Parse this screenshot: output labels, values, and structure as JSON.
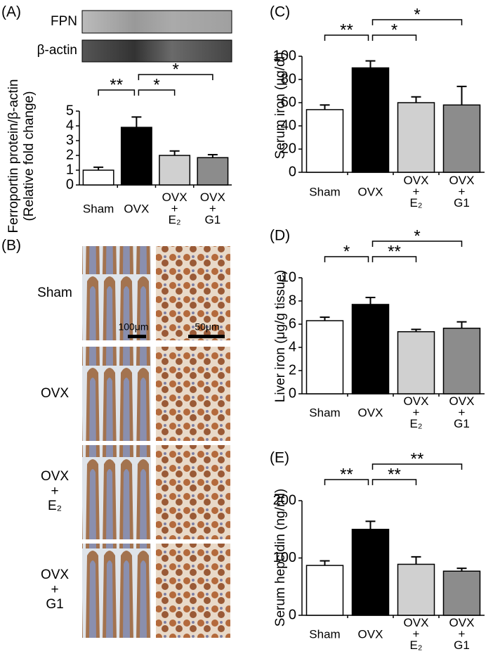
{
  "chart_data": [
    {
      "type": "bar",
      "panel": "(A)",
      "blot_labels": [
        "FPN",
        "β-actin"
      ],
      "ylabel": [
        "Ferroportin protein/β-actin",
        "(Relative fold change)"
      ],
      "categories": [
        "Sham",
        "OVX",
        "OVX + E₂",
        "OVX + G1"
      ],
      "values": [
        1.0,
        3.9,
        2.0,
        1.85
      ],
      "errors": [
        0.2,
        0.7,
        0.3,
        0.2
      ],
      "colors": [
        "#ffffff",
        "#000000",
        "#d0d0d0",
        "#8c8c8c"
      ],
      "ylim": [
        0,
        5
      ],
      "yticks": [
        0,
        1,
        2,
        3,
        4,
        5
      ],
      "annotations": [
        {
          "text": "**",
          "between": [
            "Sham",
            "OVX"
          ]
        },
        {
          "text": "*",
          "between": [
            "OVX",
            "OVX + E₂"
          ]
        },
        {
          "text": "*",
          "between": [
            "OVX",
            "OVX + G1"
          ]
        }
      ]
    },
    {
      "type": "bar",
      "panel": "(C)",
      "ylabel": [
        "Serum iron (μg/dl)"
      ],
      "categories": [
        "Sham",
        "OVX",
        "OVX + E₂",
        "OVX + G1"
      ],
      "values": [
        54,
        90,
        60,
        58
      ],
      "errors": [
        4,
        6,
        5,
        16
      ],
      "colors": [
        "#ffffff",
        "#000000",
        "#d0d0d0",
        "#8c8c8c"
      ],
      "ylim": [
        0,
        100
      ],
      "yticks": [
        0,
        20,
        40,
        60,
        80,
        100
      ],
      "annotations": [
        {
          "text": "**",
          "between": [
            "Sham",
            "OVX"
          ]
        },
        {
          "text": "*",
          "between": [
            "OVX",
            "OVX + E₂"
          ]
        },
        {
          "text": "*",
          "between": [
            "OVX",
            "OVX + G1"
          ]
        }
      ]
    },
    {
      "type": "bar",
      "panel": "(D)",
      "ylabel": [
        "Liver iron (μg/g tissue)"
      ],
      "categories": [
        "Sham",
        "OVX",
        "OVX + E₂",
        "OVX + G1"
      ],
      "values": [
        6.3,
        7.7,
        5.35,
        5.65
      ],
      "errors": [
        0.3,
        0.6,
        0.2,
        0.55
      ],
      "colors": [
        "#ffffff",
        "#000000",
        "#d0d0d0",
        "#8c8c8c"
      ],
      "ylim": [
        0,
        10
      ],
      "yticks": [
        0,
        2,
        4,
        6,
        8,
        10
      ],
      "annotations": [
        {
          "text": "*",
          "between": [
            "Sham",
            "OVX"
          ]
        },
        {
          "text": "**",
          "between": [
            "OVX",
            "OVX + E₂"
          ]
        },
        {
          "text": "*",
          "between": [
            "OVX",
            "OVX + G1"
          ]
        }
      ]
    },
    {
      "type": "bar",
      "panel": "(E)",
      "ylabel": [
        "Serum hepcidin (ng/ml)"
      ],
      "categories": [
        "Sham",
        "OVX",
        "OVX + E₂",
        "OVX + G1"
      ],
      "values": [
        87,
        150,
        89,
        77
      ],
      "errors": [
        8,
        14,
        13,
        5
      ],
      "colors": [
        "#ffffff",
        "#000000",
        "#d0d0d0",
        "#8c8c8c"
      ],
      "ylim": [
        0,
        200
      ],
      "yticks": [
        0,
        100,
        200
      ],
      "annotations": [
        {
          "text": "**",
          "between": [
            "Sham",
            "OVX"
          ]
        },
        {
          "text": "**",
          "between": [
            "OVX",
            "OVX + E₂"
          ]
        },
        {
          "text": "**",
          "between": [
            "OVX",
            "OVX + G1"
          ]
        }
      ]
    }
  ],
  "panel_b": {
    "panel": "(B)",
    "rows": [
      "Sham",
      "OVX",
      "OVX + E₂",
      "OVX + G1"
    ],
    "scale_bars": [
      "100μm",
      "50μm"
    ]
  }
}
